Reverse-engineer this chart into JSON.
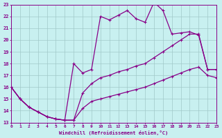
{
  "xlabel": "Windchill (Refroidissement éolien,°C)",
  "xlim": [
    0,
    23
  ],
  "ylim": [
    13,
    23
  ],
  "yticks": [
    13,
    14,
    15,
    16,
    17,
    18,
    19,
    20,
    21,
    22,
    23
  ],
  "xticks": [
    0,
    1,
    2,
    3,
    4,
    5,
    6,
    7,
    8,
    9,
    10,
    11,
    12,
    13,
    14,
    15,
    16,
    17,
    18,
    19,
    20,
    21,
    22,
    23
  ],
  "background_color": "#c8f0f0",
  "grid_color": "#a0c8c8",
  "line_color": "#880088",
  "line1_y": [
    16.0,
    15.0,
    14.3,
    13.9,
    13.5,
    13.3,
    13.2,
    18.0,
    17.2,
    17.5,
    22.0,
    21.7,
    22.1,
    22.5,
    21.8,
    21.5,
    23.2,
    22.5,
    20.5,
    20.6,
    20.7,
    20.4,
    17.5,
    17.5
  ],
  "line2_y": [
    16.0,
    15.0,
    14.3,
    13.9,
    13.5,
    13.3,
    13.2,
    13.2,
    15.5,
    16.3,
    16.8,
    17.0,
    17.3,
    17.5,
    17.8,
    18.0,
    18.5,
    19.0,
    19.5,
    20.0,
    20.5,
    20.5,
    17.5,
    17.5
  ],
  "line3_y": [
    16.0,
    15.0,
    14.3,
    13.9,
    13.5,
    13.3,
    13.2,
    13.2,
    14.2,
    14.8,
    15.0,
    15.2,
    15.4,
    15.6,
    15.8,
    16.0,
    16.3,
    16.6,
    16.9,
    17.2,
    17.5,
    17.7,
    17.0,
    16.8
  ]
}
